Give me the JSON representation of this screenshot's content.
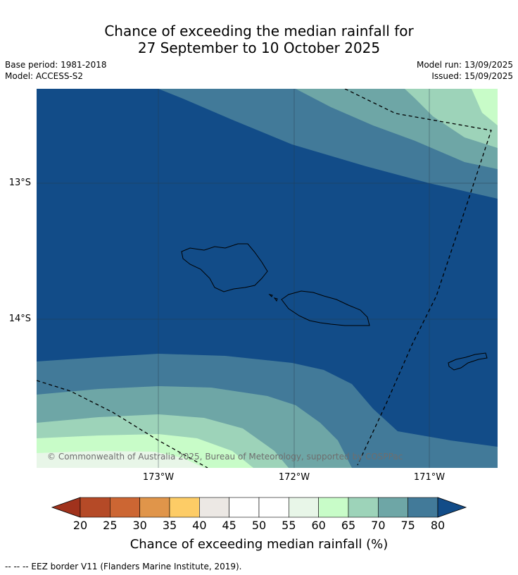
{
  "title_line1": "Chance of exceeding the median rainfall for",
  "title_line2": "27 September to 10 October 2025",
  "base_period": "Base period: 1981-2018",
  "model": "Model: ACCESS-S2",
  "model_run": "Model run: 13/09/2025",
  "issued": "Issued: 15/09/2025",
  "lat_labels": [
    "13°S",
    "14°S"
  ],
  "lon_labels": [
    "173°W",
    "172°W",
    "171°W"
  ],
  "copyright": "© Commonwealth of Australia 2025, Bureau of Meteorology, supported by COSPPac",
  "colorbar": {
    "label": "Chance of exceeding median rainfall (%)",
    "ticks": [
      "20",
      "25",
      "30",
      "35",
      "40",
      "45",
      "50",
      "55",
      "60",
      "65",
      "70",
      "75",
      "80"
    ],
    "colors": [
      "#a0321c",
      "#b54a27",
      "#cc6633",
      "#e0954a",
      "#fdcc66",
      "#ece8e4",
      "#ffffff",
      "#ffffff",
      "#e8f6e8",
      "#c8fcc8",
      "#9dd3b9",
      "#6ea6a6",
      "#427a99",
      "#124c88"
    ]
  },
  "footnote": "--  --  -- EEZ border V11 (Flanders Marine Institute, 2019).",
  "map_colors": {
    "c80": "#124c88",
    "c75": "#427a99",
    "c70": "#6ea6a6",
    "c65": "#9dd3b9",
    "c60": "#c8fcc8",
    "c55": "#e8f6e8"
  }
}
